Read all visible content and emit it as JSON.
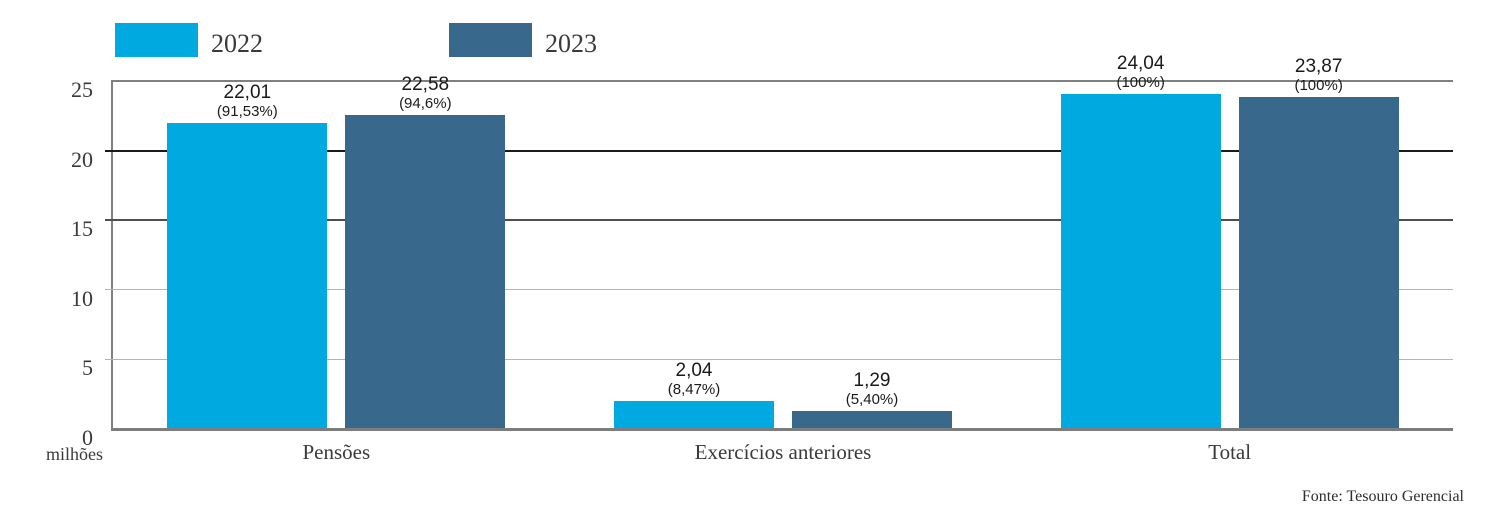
{
  "chart_data": {
    "type": "bar",
    "categories": [
      "Pensões",
      "Exercícios anteriores",
      "Total"
    ],
    "series": [
      {
        "name": "2022",
        "color": "#00A9DF",
        "values": [
          22.01,
          2.04,
          24.04
        ],
        "value_labels": [
          "22,01",
          "2,04",
          "24,04"
        ],
        "percent_labels": [
          "(91,53%)",
          "(8,47%)",
          "(100%)"
        ]
      },
      {
        "name": "2023",
        "color": "#38698C",
        "values": [
          22.58,
          1.29,
          23.87
        ],
        "value_labels": [
          "22,58",
          "1,29",
          "23,87"
        ],
        "percent_labels": [
          "(94,6%)",
          "(5,40%)",
          "(100%)"
        ]
      }
    ],
    "title": "",
    "xlabel": "",
    "ylabel": "",
    "unit_label": "milhões",
    "source_note": "Fonte: Tesouro Gerencial",
    "ylim": [
      0,
      25
    ],
    "yticks": [
      0,
      5,
      10,
      15,
      20,
      25
    ],
    "ytick_labels": [
      "0",
      "5",
      "10",
      "15",
      "20",
      "25"
    ],
    "grid": "horizontal-only",
    "legend_position": "top-left"
  }
}
